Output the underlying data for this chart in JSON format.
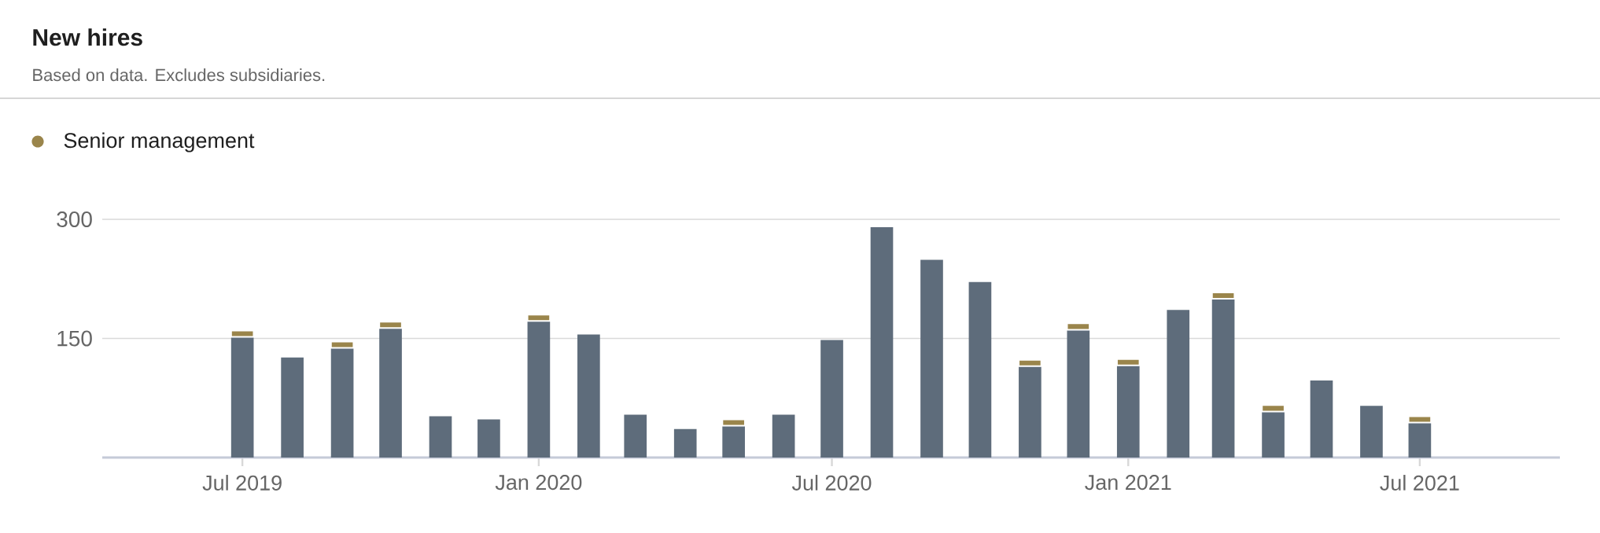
{
  "chart_data": {
    "type": "bar",
    "title": "New hires",
    "subtitle": "Based on data. Excludes subsidiaries.",
    "stacked": true,
    "x": [
      "2019-07",
      "2019-08",
      "2019-09",
      "2019-10",
      "2019-11",
      "2019-12",
      "2020-01",
      "2020-02",
      "2020-03",
      "2020-04",
      "2020-05",
      "2020-06",
      "2020-07",
      "2020-08",
      "2020-09",
      "2020-10",
      "2020-11",
      "2020-12",
      "2021-01",
      "2021-02",
      "2021-03",
      "2021-04",
      "2021-05",
      "2021-06",
      "2021-07"
    ],
    "series": [
      {
        "color": "#5e6c7b",
        "values": [
          152,
          126,
          138,
          163,
          52,
          48,
          172,
          155,
          54,
          36,
          40,
          54,
          148,
          290,
          249,
          221,
          115,
          161,
          116,
          186,
          200,
          58,
          97,
          65,
          44
        ]
      },
      {
        "name": "Senior management",
        "color": "#9a854b",
        "values": [
          8,
          null,
          8,
          8,
          null,
          null,
          8,
          null,
          null,
          null,
          8,
          null,
          null,
          null,
          null,
          null,
          8,
          8,
          8,
          null,
          8,
          8,
          null,
          null,
          8
        ]
      }
    ],
    "xlim": [
      "2019-04-05",
      "2021-09-26"
    ],
    "xticks": [
      {
        "value": "2019-07",
        "label": "Jul 2019"
      },
      {
        "value": "2020-01",
        "label": "Jan 2020"
      },
      {
        "value": "2020-07",
        "label": "Jul 2020"
      },
      {
        "value": "2021-01",
        "label": "Jan 2021"
      },
      {
        "value": "2021-07",
        "label": "Jul 2021"
      }
    ],
    "ylim": [
      0,
      300
    ],
    "yticks": [
      150,
      300
    ],
    "grid": "y",
    "legend": "top left"
  }
}
